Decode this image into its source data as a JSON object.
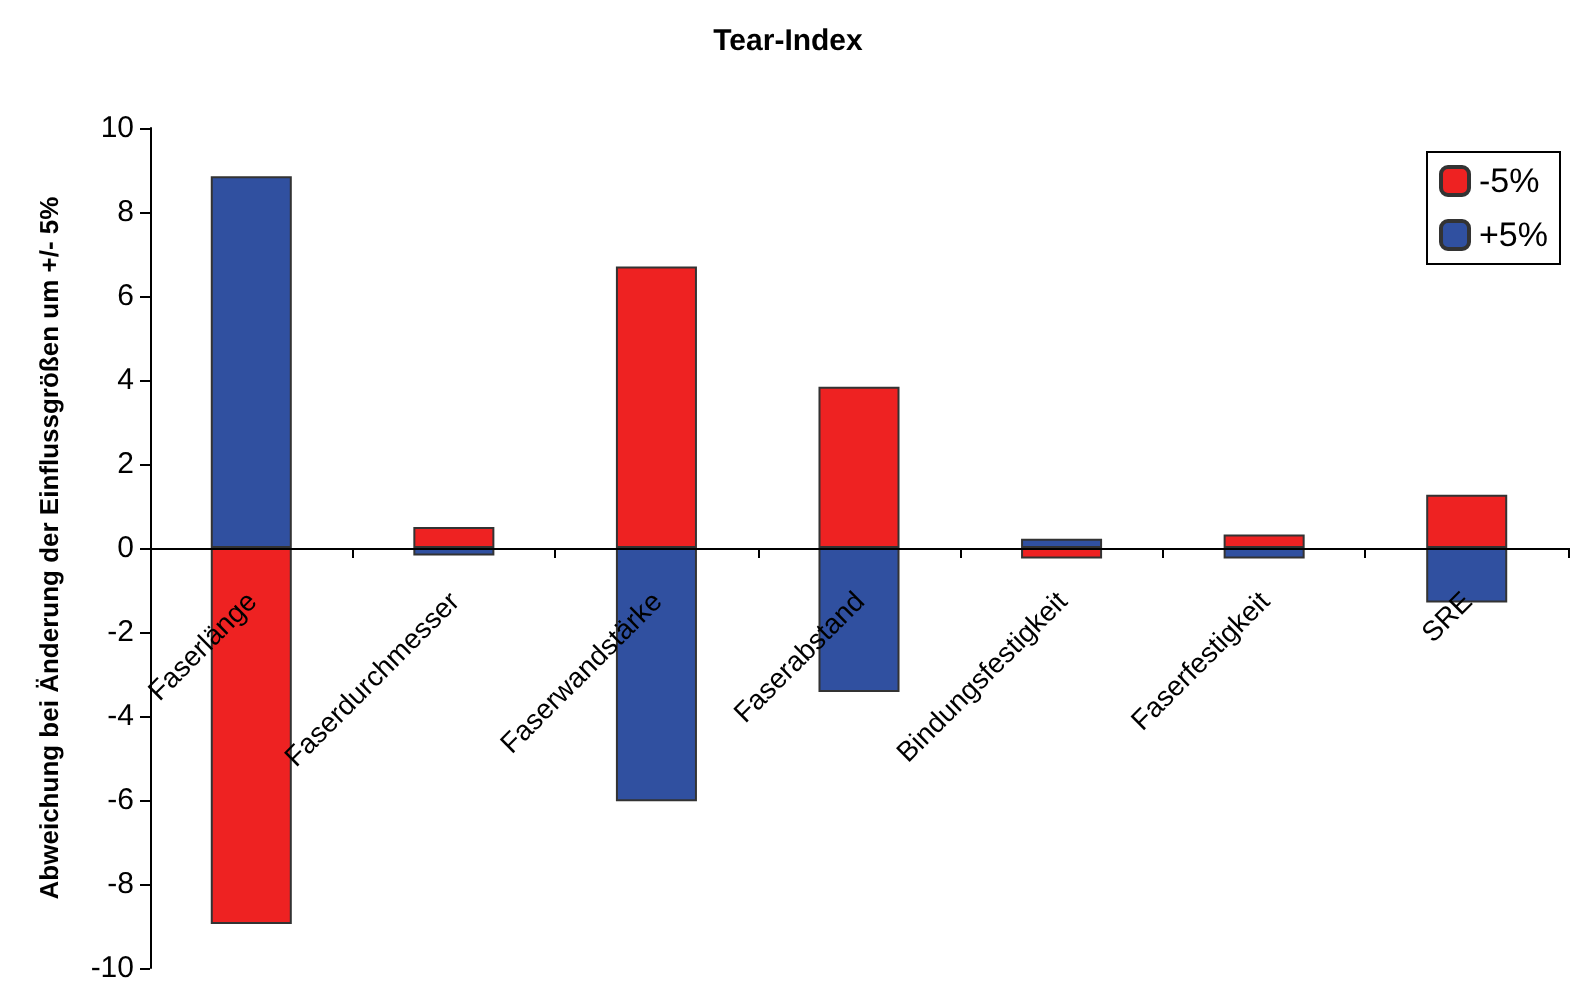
{
  "chart_data": {
    "type": "bar",
    "title": "Tear-Index",
    "ylabel": "Abweichung bei Änderung der Einflussgrößen um +/- 5%",
    "categories": [
      "Faserlänge",
      "Faserdurchmesser",
      "Faserwandstärke",
      "Faserabstand",
      "Bindungsfestigkeit",
      "Faserfestigkeit",
      "SRE"
    ],
    "stacked": true,
    "series": [
      {
        "name": "-5%",
        "color": "#ee2222",
        "values": [
          -8.95,
          0.5,
          6.7,
          3.84,
          -0.25,
          0.32,
          1.27
        ]
      },
      {
        "name": "+5%",
        "color": "#3050a0",
        "values": [
          8.85,
          -0.18,
          -6.03,
          -3.43,
          0.22,
          -0.25,
          -1.3
        ]
      }
    ],
    "ylim": [
      -10,
      10
    ],
    "yticks": [
      -10,
      -8,
      -6,
      -4,
      -2,
      0,
      2,
      4,
      6,
      8,
      10
    ],
    "grid": false,
    "legend": "top right"
  }
}
